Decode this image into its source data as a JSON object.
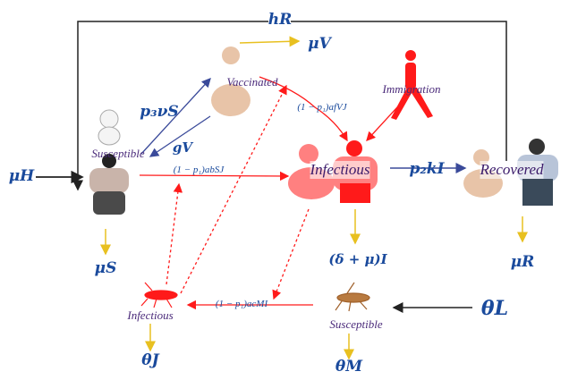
{
  "compartments": {
    "vaccinated": "Vaccinated",
    "susceptible_human": "Susceptible",
    "infectious_human": "Infectious",
    "recovered": "Recovered",
    "immigration": "Immigration",
    "infectious_mosquito": "Infectious",
    "susceptible_mosquito": "Susceptible"
  },
  "rates": {
    "hR": "hR",
    "muV": "μV",
    "p3nuS": "p₃νS",
    "gV": "gV",
    "muH": "μH",
    "abSJ": "(1 − p₁)abSJ",
    "afVJ": "(1 − p₁)afVJ",
    "p2kI": "p₂kI",
    "muS": "μS",
    "deltamuI": "(δ + μ)I",
    "muR": "μR",
    "acMI": "(1 − p₁)acMI",
    "thetaL": "θL",
    "thetaJ": "θJ",
    "thetaM": "θM"
  },
  "colors": {
    "infection": "#ff1a1a",
    "death": "#e8c020",
    "flow": "#3a4a9a",
    "text": "#1a4a9c"
  }
}
